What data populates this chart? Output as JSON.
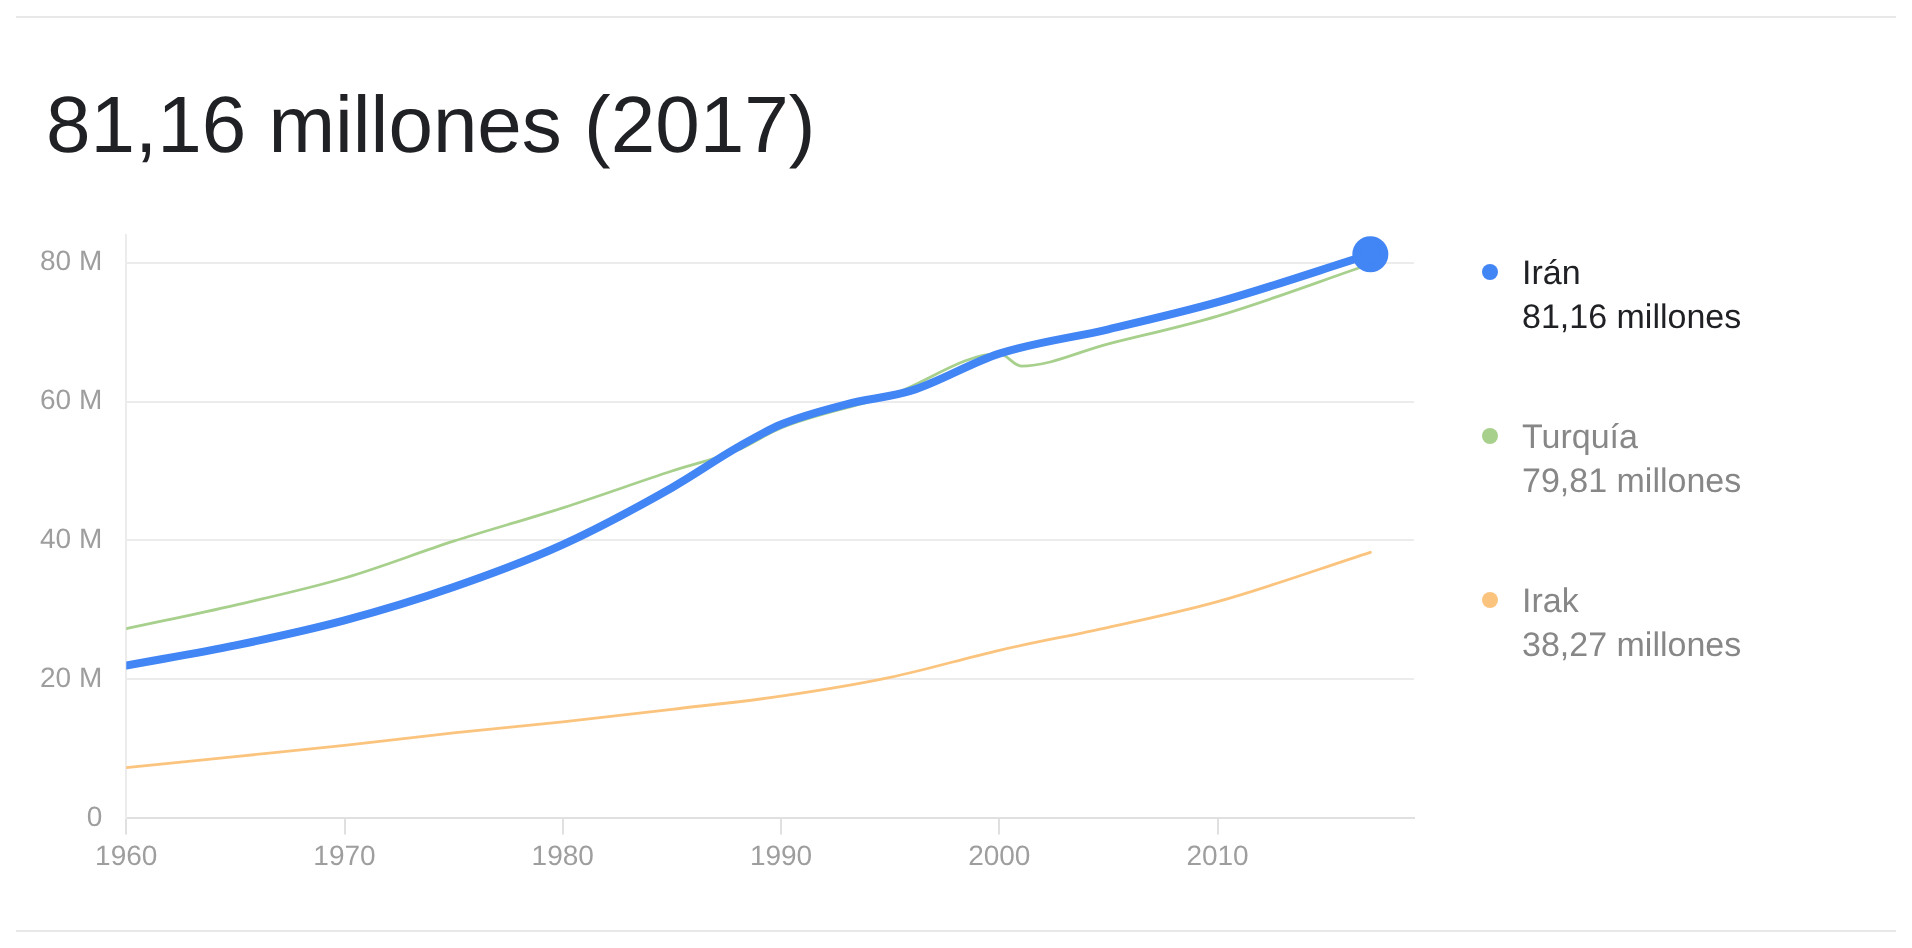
{
  "chart_data": {
    "type": "line",
    "title": "81,16 millones (2017)",
    "annotations": [
      "81,16 millones",
      "79,81 millones",
      "38,27 millones"
    ],
    "series": [
      {
        "name": "Irán",
        "color": "#4285f4",
        "x": [
          1960,
          1965,
          1970,
          1975,
          1980,
          1985,
          1988,
          1990,
          1993,
          1996,
          2000,
          2005,
          2010,
          2017
        ],
        "values": [
          22.0,
          24.9,
          28.5,
          33.3,
          39.4,
          47.6,
          53.4,
          56.7,
          59.6,
          61.6,
          66.9,
          70.4,
          74.3,
          81.2
        ]
      },
      {
        "name": "Turquía",
        "color": "#a8d08d",
        "x": [
          1960,
          1965,
          1970,
          1975,
          1980,
          1985,
          1988,
          1990,
          1995,
          2000,
          2001,
          2005,
          2010,
          2017
        ],
        "values": [
          27.3,
          30.7,
          34.6,
          39.9,
          44.7,
          50.0,
          53.0,
          56.2,
          60.9,
          66.9,
          65.1,
          68.3,
          72.3,
          79.8
        ]
      },
      {
        "name": "Irak",
        "color": "#fbc47e",
        "x": [
          1960,
          1965,
          1970,
          1975,
          1980,
          1985,
          1990,
          1995,
          2000,
          2005,
          2010,
          2017
        ],
        "values": [
          7.3,
          8.9,
          10.5,
          12.3,
          13.9,
          15.7,
          17.6,
          20.3,
          24.2,
          27.5,
          31.2,
          38.3
        ]
      }
    ],
    "xlim": [
      1960,
      2019
    ],
    "xticks": [
      1960,
      1970,
      1980,
      1990,
      2000,
      2010
    ],
    "ylim": [
      0,
      84
    ],
    "yticks": [
      {
        "value": 0,
        "label": "0"
      },
      {
        "value": 20,
        "label": "20 M"
      },
      {
        "value": 40,
        "label": "40 M"
      },
      {
        "value": 60,
        "label": "60 M"
      },
      {
        "value": 80,
        "label": "80 M"
      }
    ],
    "grid": "y",
    "legend": "right"
  }
}
